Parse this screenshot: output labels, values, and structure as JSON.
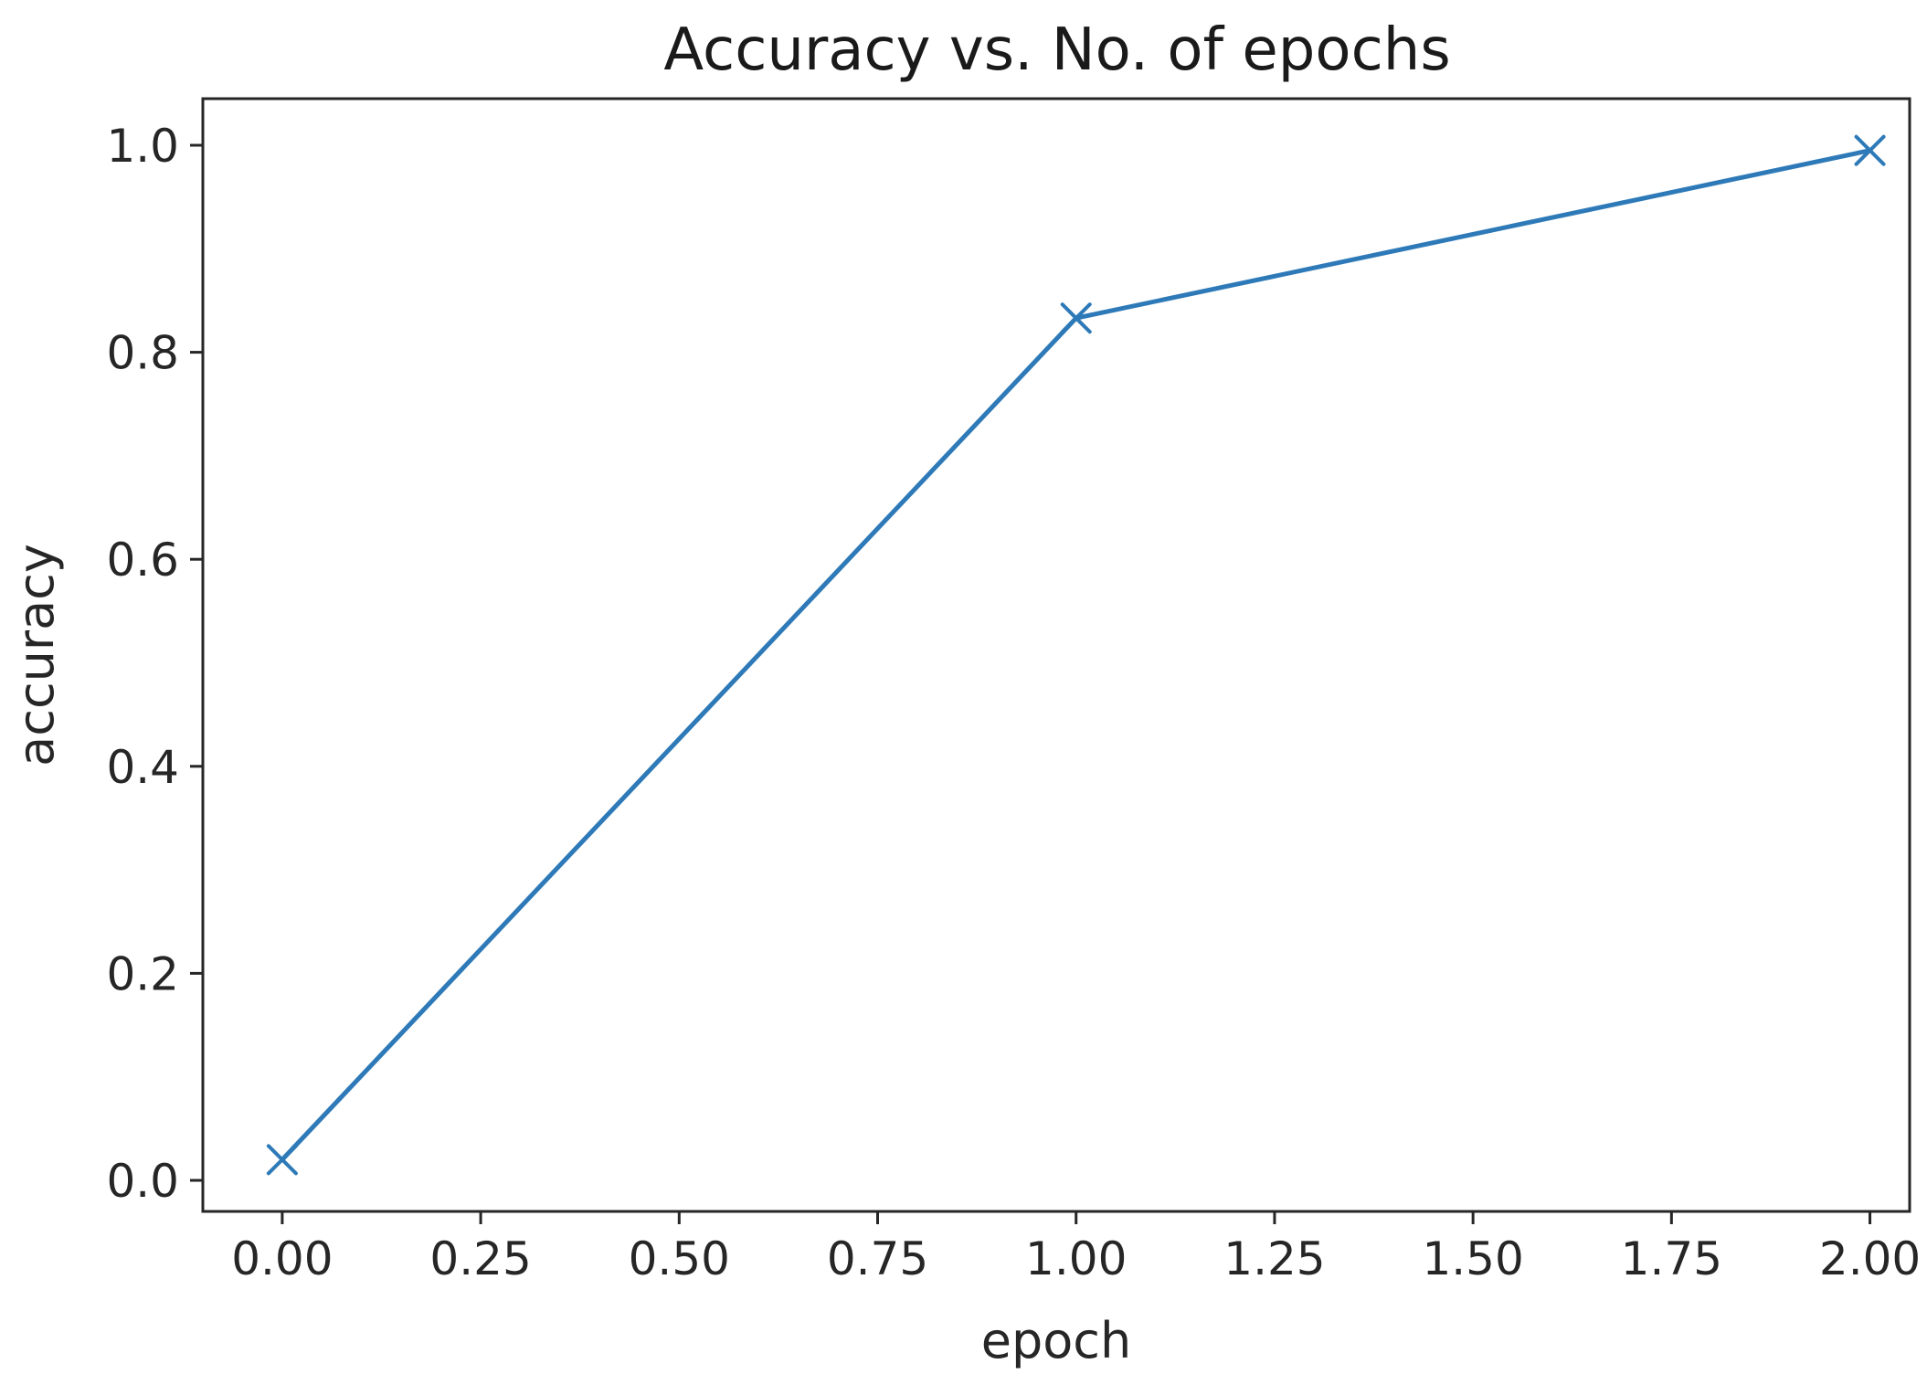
{
  "chart_data": {
    "type": "line",
    "title": "Accuracy vs. No. of epochs",
    "xlabel": "epoch",
    "ylabel": "accuracy",
    "xlim": [
      -0.1,
      2.05
    ],
    "ylim": [
      -0.03,
      1.045
    ],
    "x_ticks": [
      0.0,
      0.25,
      0.5,
      0.75,
      1.0,
      1.25,
      1.5,
      1.75,
      2.0
    ],
    "x_tick_labels": [
      "0.00",
      "0.25",
      "0.50",
      "0.75",
      "1.00",
      "1.25",
      "1.50",
      "1.75",
      "2.00"
    ],
    "y_ticks": [
      0.0,
      0.2,
      0.4,
      0.6,
      0.8,
      1.0
    ],
    "y_tick_labels": [
      "0.0",
      "0.2",
      "0.4",
      "0.6",
      "0.8",
      "1.0"
    ],
    "grid": false,
    "marker": "x",
    "line_color": "#2e7ab8",
    "series": [
      {
        "x": [
          0,
          1,
          2
        ],
        "values": [
          0.02,
          0.833,
          0.995
        ]
      }
    ]
  }
}
